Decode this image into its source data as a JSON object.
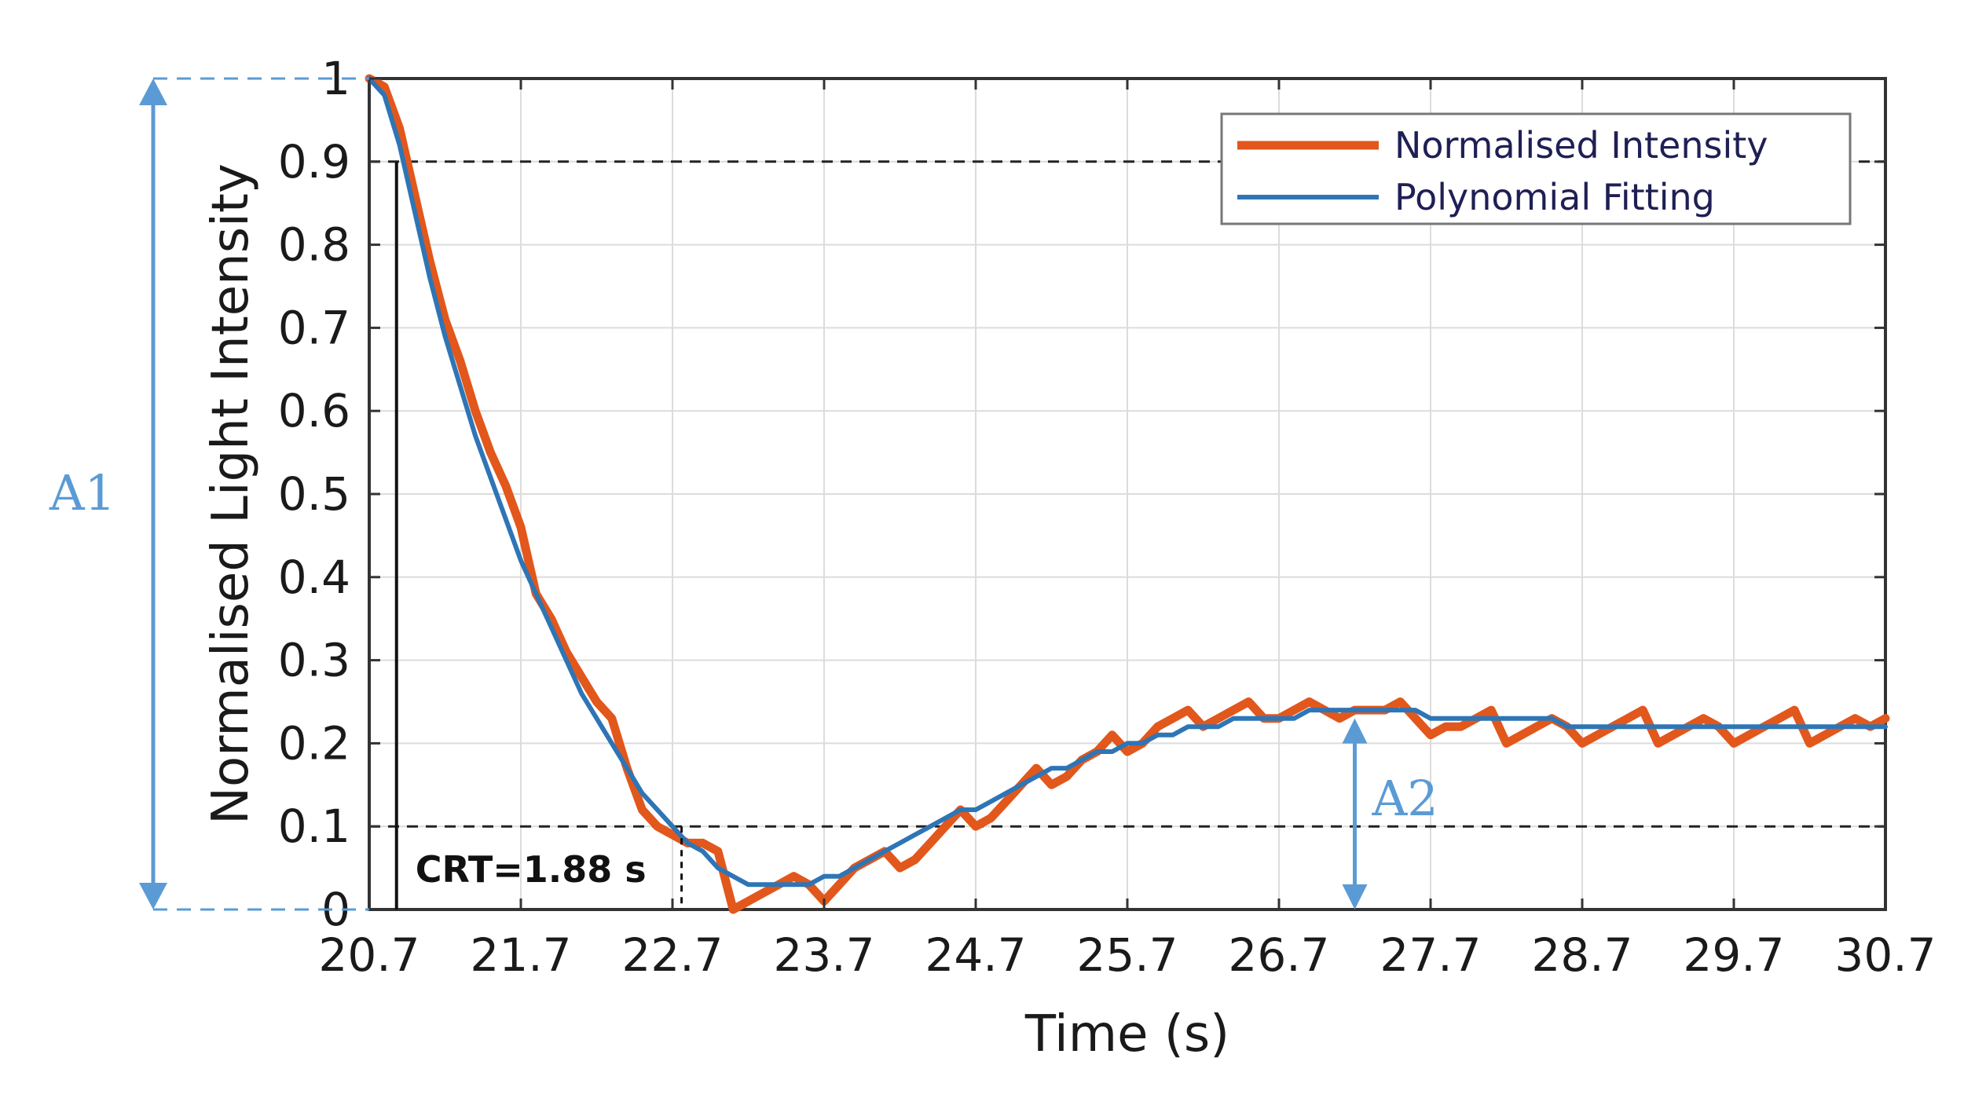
{
  "chart_data": {
    "type": "line",
    "title": "",
    "xlabel": "Time (s)",
    "ylabel": "Normalised Light Intensity",
    "xlim": [
      20.7,
      30.7
    ],
    "ylim": [
      0,
      1
    ],
    "x_ticks": [
      20.7,
      21.7,
      22.7,
      23.7,
      24.7,
      25.7,
      26.7,
      27.7,
      28.7,
      29.7,
      30.7
    ],
    "y_ticks": [
      0,
      0.1,
      0.2,
      0.3,
      0.4,
      0.5,
      0.6,
      0.7,
      0.8,
      0.9,
      1
    ],
    "x_tick_labels": [
      "20.7",
      "21.7",
      "22.7",
      "23.7",
      "24.7",
      "25.7",
      "26.7",
      "27.7",
      "28.7",
      "29.7",
      "30.7"
    ],
    "y_tick_labels": [
      "0",
      "0.1",
      "0.2",
      "0.3",
      "0.4",
      "0.5",
      "0.6",
      "0.7",
      "0.8",
      "0.9",
      "1"
    ],
    "grid": true,
    "legend": "top-right",
    "series": [
      {
        "name": "Normalised Intensity",
        "color": "#e2571b",
        "x": [
          20.7,
          20.8,
          20.9,
          21.0,
          21.1,
          21.2,
          21.3,
          21.4,
          21.5,
          21.6,
          21.7,
          21.8,
          21.9,
          22.0,
          22.1,
          22.2,
          22.3,
          22.4,
          22.5,
          22.6,
          22.7,
          22.8,
          22.9,
          23.0,
          23.1,
          23.2,
          23.3,
          23.4,
          23.5,
          23.6,
          23.7,
          23.8,
          23.9,
          24.0,
          24.1,
          24.2,
          24.3,
          24.4,
          24.5,
          24.6,
          24.7,
          24.8,
          24.9,
          25.0,
          25.1,
          25.2,
          25.3,
          25.4,
          25.5,
          25.6,
          25.7,
          25.8,
          25.9,
          26.0,
          26.1,
          26.2,
          26.3,
          26.4,
          26.5,
          26.6,
          26.7,
          26.8,
          26.9,
          27.0,
          27.1,
          27.2,
          27.3,
          27.4,
          27.5,
          27.6,
          27.7,
          27.8,
          27.9,
          28.0,
          28.1,
          28.2,
          28.3,
          28.4,
          28.5,
          28.6,
          28.7,
          28.8,
          28.9,
          29.0,
          29.1,
          29.2,
          29.3,
          29.4,
          29.5,
          29.6,
          29.7,
          29.8,
          29.9,
          30.0,
          30.1,
          30.2,
          30.3,
          30.4,
          30.5,
          30.6,
          30.7
        ],
        "y": [
          1.0,
          0.99,
          0.94,
          0.86,
          0.78,
          0.71,
          0.66,
          0.6,
          0.55,
          0.51,
          0.46,
          0.38,
          0.35,
          0.31,
          0.28,
          0.25,
          0.23,
          0.17,
          0.12,
          0.1,
          0.09,
          0.08,
          0.08,
          0.07,
          0.0,
          0.01,
          0.02,
          0.03,
          0.04,
          0.03,
          0.01,
          0.03,
          0.05,
          0.06,
          0.07,
          0.05,
          0.06,
          0.08,
          0.1,
          0.12,
          0.1,
          0.11,
          0.13,
          0.15,
          0.17,
          0.15,
          0.16,
          0.18,
          0.19,
          0.21,
          0.19,
          0.2,
          0.22,
          0.23,
          0.24,
          0.22,
          0.23,
          0.24,
          0.25,
          0.23,
          0.23,
          0.24,
          0.25,
          0.24,
          0.23,
          0.24,
          0.24,
          0.24,
          0.25,
          0.23,
          0.21,
          0.22,
          0.22,
          0.23,
          0.24,
          0.2,
          0.21,
          0.22,
          0.23,
          0.22,
          0.2,
          0.21,
          0.22,
          0.23,
          0.24,
          0.2,
          0.21,
          0.22,
          0.23,
          0.22,
          0.2,
          0.21,
          0.22,
          0.23,
          0.24,
          0.2,
          0.21,
          0.22,
          0.23,
          0.22,
          0.23
        ]
      },
      {
        "name": "Polynomial Fitting",
        "color": "#2e75b6",
        "x": [
          20.7,
          20.8,
          20.9,
          21.0,
          21.1,
          21.2,
          21.3,
          21.4,
          21.5,
          21.6,
          21.7,
          21.8,
          21.9,
          22.0,
          22.1,
          22.2,
          22.3,
          22.4,
          22.5,
          22.6,
          22.7,
          22.8,
          22.9,
          23.0,
          23.1,
          23.2,
          23.3,
          23.4,
          23.5,
          23.6,
          23.7,
          23.8,
          23.9,
          24.0,
          24.1,
          24.2,
          24.3,
          24.4,
          24.5,
          24.6,
          24.7,
          24.8,
          24.9,
          25.0,
          25.1,
          25.2,
          25.3,
          25.4,
          25.5,
          25.6,
          25.7,
          25.8,
          25.9,
          26.0,
          26.1,
          26.2,
          26.3,
          26.4,
          26.5,
          26.6,
          26.7,
          26.8,
          26.9,
          27.0,
          27.1,
          27.2,
          27.3,
          27.4,
          27.5,
          27.6,
          27.7,
          27.8,
          27.9,
          28.0,
          28.1,
          28.2,
          28.3,
          28.4,
          28.5,
          28.6,
          28.7,
          28.8,
          28.9,
          29.0,
          29.1,
          29.2,
          29.3,
          29.4,
          29.5,
          29.6,
          29.7,
          29.8,
          29.9,
          30.0,
          30.1,
          30.2,
          30.3,
          30.4,
          30.5,
          30.6,
          30.7
        ],
        "y": [
          1.0,
          0.98,
          0.92,
          0.84,
          0.76,
          0.69,
          0.63,
          0.57,
          0.52,
          0.47,
          0.42,
          0.38,
          0.34,
          0.3,
          0.26,
          0.23,
          0.2,
          0.17,
          0.14,
          0.12,
          0.1,
          0.08,
          0.07,
          0.05,
          0.04,
          0.03,
          0.03,
          0.03,
          0.03,
          0.03,
          0.04,
          0.04,
          0.05,
          0.06,
          0.07,
          0.08,
          0.09,
          0.1,
          0.11,
          0.12,
          0.12,
          0.13,
          0.14,
          0.15,
          0.16,
          0.17,
          0.17,
          0.18,
          0.19,
          0.19,
          0.2,
          0.2,
          0.21,
          0.21,
          0.22,
          0.22,
          0.22,
          0.23,
          0.23,
          0.23,
          0.23,
          0.23,
          0.24,
          0.24,
          0.24,
          0.24,
          0.24,
          0.24,
          0.24,
          0.24,
          0.23,
          0.23,
          0.23,
          0.23,
          0.23,
          0.23,
          0.23,
          0.23,
          0.23,
          0.22,
          0.22,
          0.22,
          0.22,
          0.22,
          0.22,
          0.22,
          0.22,
          0.22,
          0.22,
          0.22,
          0.22,
          0.22,
          0.22,
          0.22,
          0.22,
          0.22,
          0.22,
          0.22,
          0.22,
          0.22,
          0.22
        ]
      }
    ],
    "annotations": {
      "threshold_lines": [
        0.9,
        0.1
      ],
      "crt_start": 20.88,
      "crt_end": 22.76,
      "crt_label": "CRT=1.88 s",
      "a1_label": "A1",
      "a2_label": "A2",
      "a2_x": 27.2,
      "a2_value": 0.23,
      "accent_color": "#5b9bd5"
    }
  }
}
